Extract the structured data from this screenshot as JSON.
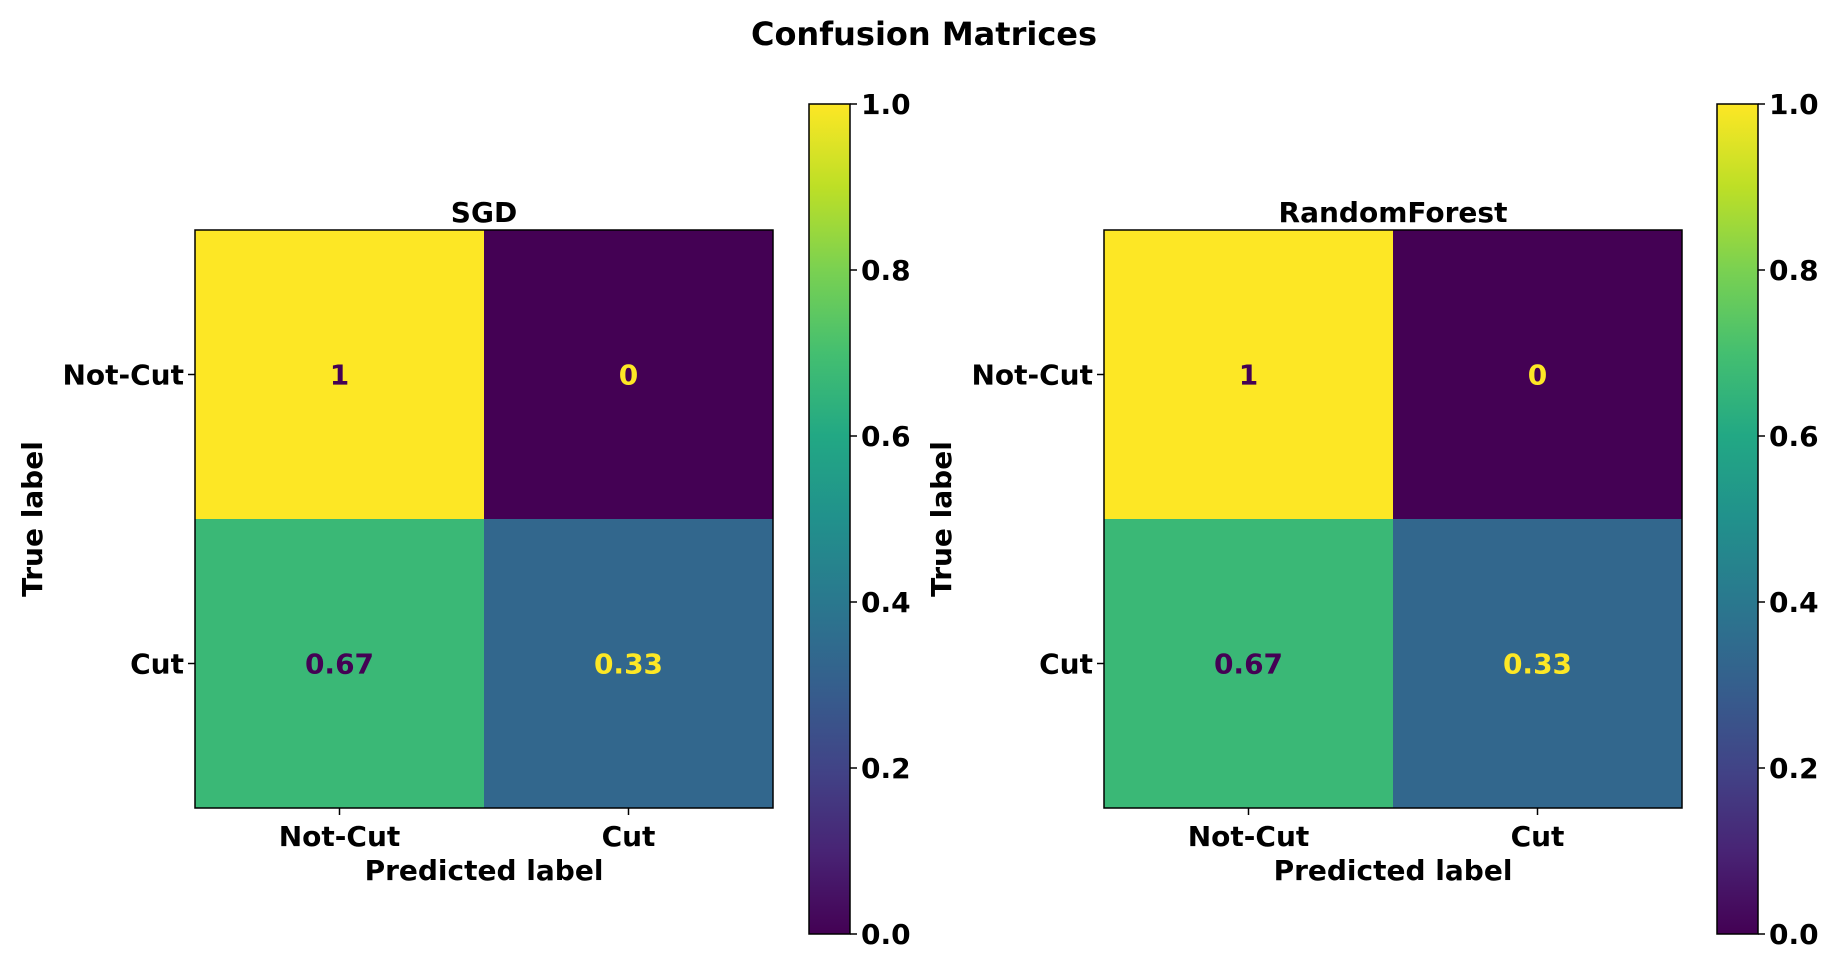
{
  "figure": {
    "title": "Confusion Matrices"
  },
  "chart_data": [
    {
      "type": "heatmap",
      "title": "SGD",
      "xlabel": "Predicted label",
      "ylabel": "True label",
      "x_categories": [
        "Not-Cut",
        "Cut"
      ],
      "y_categories": [
        "Not-Cut",
        "Cut"
      ],
      "matrix": [
        [
          1,
          0
        ],
        [
          0.67,
          0.33
        ]
      ],
      "cell_labels": [
        [
          "1",
          "0"
        ],
        [
          "0.67",
          "0.33"
        ]
      ],
      "colormap": "viridis",
      "colorbar": {
        "range": [
          0.0,
          1.0
        ],
        "ticks": [
          "0.0",
          "0.2",
          "0.4",
          "0.6",
          "0.8",
          "1.0"
        ]
      }
    },
    {
      "type": "heatmap",
      "title": "RandomForest",
      "xlabel": "Predicted label",
      "ylabel": "True label",
      "x_categories": [
        "Not-Cut",
        "Cut"
      ],
      "y_categories": [
        "Not-Cut",
        "Cut"
      ],
      "matrix": [
        [
          1,
          0
        ],
        [
          0.67,
          0.33
        ]
      ],
      "cell_labels": [
        [
          "1",
          "0"
        ],
        [
          "0.67",
          "0.33"
        ]
      ],
      "colormap": "viridis",
      "colorbar": {
        "range": [
          0.0,
          1.0
        ],
        "ticks": [
          "0.0",
          "0.2",
          "0.4",
          "0.6",
          "0.8",
          "1.0"
        ]
      }
    }
  ],
  "colors": {
    "low_text": "#fde725",
    "high_text": "#440154",
    "axis": "#000000"
  }
}
